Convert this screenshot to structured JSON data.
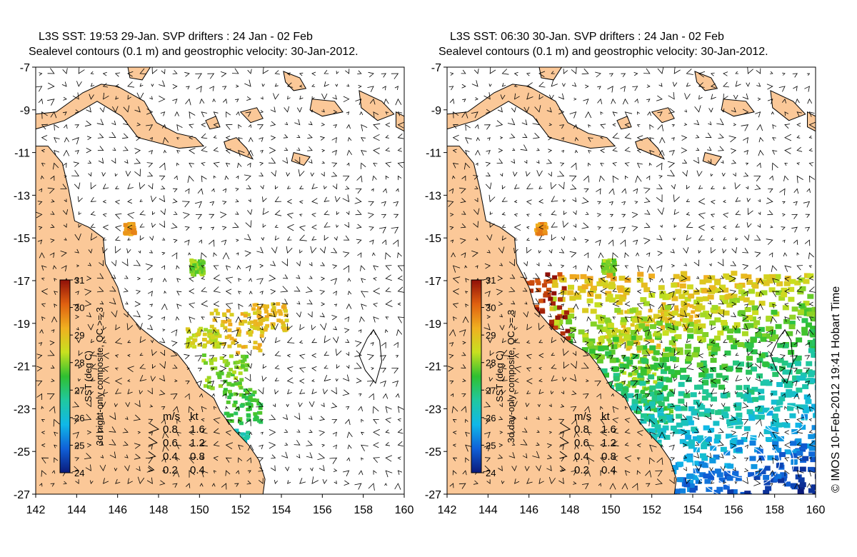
{
  "credit": "© IMOS 10-Feb-2012 19:41 Hobart Time",
  "colors": {
    "land": "#fbc898",
    "ocean": "#ffffff",
    "coast": "#000000",
    "contour": "#ffffff"
  },
  "colorbar": {
    "label": "SST (deg C)",
    "ticks": [
      24,
      25,
      26,
      27,
      28,
      29,
      30,
      31
    ],
    "range": [
      24,
      31
    ],
    "stops": [
      "#0a1a7a",
      "#1060d8",
      "#10b8e8",
      "#20c8a0",
      "#30c030",
      "#c8e020",
      "#f0b020",
      "#e06010",
      "#901008"
    ]
  },
  "velocity_key": {
    "header": [
      "m/s",
      "kt"
    ],
    "rows": [
      {
        "ms": "0.8",
        "kt": "1.6"
      },
      {
        "ms": "0.6",
        "kt": "1.2"
      },
      {
        "ms": "0.4",
        "kt": "0.8"
      },
      {
        "ms": "0.2",
        "kt": "0.4"
      }
    ]
  },
  "map_data": {
    "type": "map",
    "lon_range": [
      142,
      160
    ],
    "lat_range": [
      -27,
      -7
    ],
    "x_ticks": [
      "142",
      "144",
      "146",
      "148",
      "150",
      "152",
      "154",
      "156",
      "158",
      "160"
    ],
    "y_ticks": [
      "-7",
      "-9",
      "-11",
      "-13",
      "-15",
      "-17",
      "-19",
      "-21",
      "-23",
      "-25",
      "-27"
    ],
    "coast": [
      [
        142,
        -10.7
      ],
      [
        142.6,
        -10.7
      ],
      [
        143.3,
        -11.5
      ],
      [
        143.6,
        -12.7
      ],
      [
        143.9,
        -14.2
      ],
      [
        144.6,
        -14.5
      ],
      [
        145.3,
        -15.0
      ],
      [
        145.4,
        -16.2
      ],
      [
        146.0,
        -17.3
      ],
      [
        146.3,
        -18.3
      ],
      [
        147.1,
        -19.2
      ],
      [
        148.0,
        -19.9
      ],
      [
        148.9,
        -20.4
      ],
      [
        149.4,
        -21.0
      ],
      [
        150.0,
        -22.0
      ],
      [
        150.7,
        -22.5
      ],
      [
        151.0,
        -23.1
      ],
      [
        151.7,
        -24.0
      ],
      [
        152.4,
        -24.7
      ],
      [
        152.9,
        -25.4
      ],
      [
        153.2,
        -26.3
      ],
      [
        153.1,
        -27
      ]
    ],
    "png": [
      [
        142,
        -9.2
      ],
      [
        143.0,
        -9.1
      ],
      [
        144.3,
        -8.2
      ],
      [
        145.2,
        -7.8
      ],
      [
        146.0,
        -7.9
      ],
      [
        147.3,
        -8.6
      ],
      [
        147.9,
        -9.6
      ],
      [
        148.9,
        -10.1
      ],
      [
        149.8,
        -10.3
      ],
      [
        150.2,
        -10.7
      ],
      [
        149.0,
        -10.8
      ],
      [
        147.0,
        -10.3
      ],
      [
        146.2,
        -9.3
      ],
      [
        145.0,
        -8.6
      ],
      [
        143.4,
        -9.5
      ],
      [
        142,
        -9.9
      ]
    ],
    "png_north": [
      [
        146.5,
        -7
      ],
      [
        146.6,
        -7.5
      ],
      [
        147.2,
        -7.6
      ],
      [
        147.6,
        -7
      ]
    ],
    "islands": [
      [
        [
          151.2,
          -10.5
        ],
        [
          151.8,
          -10.3
        ],
        [
          152.3,
          -10.8
        ],
        [
          152.6,
          -11.3
        ],
        [
          151.8,
          -11.0
        ],
        [
          151.3,
          -10.8
        ]
      ],
      [
        [
          152.0,
          -9.1
        ],
        [
          152.8,
          -8.9
        ],
        [
          153.1,
          -9.4
        ],
        [
          152.5,
          -9.6
        ]
      ],
      [
        [
          150.3,
          -9.5
        ],
        [
          150.8,
          -9.3
        ],
        [
          151.0,
          -9.8
        ],
        [
          150.5,
          -9.9
        ]
      ],
      [
        [
          154.6,
          -11.0
        ],
        [
          155.4,
          -11.2
        ],
        [
          155.1,
          -11.6
        ],
        [
          154.5,
          -11.4
        ]
      ],
      [
        [
          155.5,
          -8.5
        ],
        [
          156.6,
          -8.6
        ],
        [
          157.0,
          -9.1
        ],
        [
          156.0,
          -9.3
        ],
        [
          155.4,
          -9.0
        ]
      ],
      [
        [
          157.8,
          -8.1
        ],
        [
          158.9,
          -8.6
        ],
        [
          159.5,
          -9.2
        ],
        [
          158.7,
          -9.5
        ],
        [
          157.9,
          -8.9
        ]
      ],
      [
        [
          159.6,
          -9.1
        ],
        [
          160,
          -9.3
        ],
        [
          160,
          -10.0
        ],
        [
          159.6,
          -9.8
        ]
      ],
      [
        [
          154.1,
          -7.2
        ],
        [
          154.9,
          -7.5
        ],
        [
          155.2,
          -8.0
        ],
        [
          154.6,
          -8.1
        ],
        [
          154.2,
          -7.7
        ]
      ],
      [
        [
          158.2,
          -19.7
        ],
        [
          158.5,
          -19.3
        ],
        [
          158.8,
          -19.8
        ],
        [
          158.9,
          -20.8
        ],
        [
          158.6,
          -21.8
        ],
        [
          158.1,
          -21.2
        ],
        [
          157.8,
          -20.5
        ]
      ]
    ],
    "sst_patches": [
      {
        "lon": 151.8,
        "lat": -19.3,
        "w": 2.6,
        "h": 2.0,
        "value": 29.0
      },
      {
        "lon": 153.3,
        "lat": -18.6,
        "w": 1.8,
        "h": 1.3,
        "value": 29.0
      },
      {
        "lon": 151.2,
        "lat": -21.2,
        "w": 2.2,
        "h": 1.6,
        "value": 28.0
      },
      {
        "lon": 152.0,
        "lat": -22.8,
        "w": 1.8,
        "h": 1.6,
        "value": 27.5
      },
      {
        "lon": 151.7,
        "lat": -24.5,
        "w": 1.2,
        "h": 1.2,
        "value": 26.5
      },
      {
        "lon": 150.1,
        "lat": -19.6,
        "w": 1.6,
        "h": 0.9,
        "value": 28.5
      },
      {
        "lon": 146.5,
        "lat": -14.5,
        "w": 0.5,
        "h": 0.5,
        "value": 29.5
      },
      {
        "lon": 149.8,
        "lat": -16.3,
        "w": 0.6,
        "h": 0.7,
        "value": 28.0
      }
    ],
    "panels": [
      {
        "title_line1": "L3S SST: 19:53 29-Jan. SVP drifters : 24 Jan - 02 Feb",
        "title_line2": "Sealevel contours (0.1 m) and geostrophic velocity: 30-Jan-2012.",
        "colorbar_caption": "3d night-only composite, QC >= 3",
        "sst_coverage": "partial"
      },
      {
        "title_line1": "L3S SST: 06:30 30-Jan. SVP drifters : 24 Jan - 02 Feb",
        "title_line2": "Sealevel contours (0.1 m) and geostrophic velocity: 30-Jan-2012.",
        "colorbar_caption": "3d day-only composite, QC >= 3",
        "sst_coverage": "extensive"
      }
    ]
  }
}
